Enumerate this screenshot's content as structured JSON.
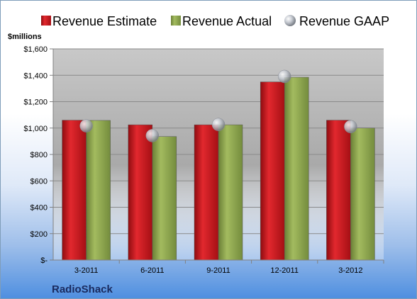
{
  "chart_data": {
    "type": "bar",
    "company": "RadioShack",
    "ylabel": "$millions",
    "ylim": [
      0,
      1600
    ],
    "ystep": 200,
    "grid": true,
    "legend_position": "top",
    "y_tick_labels": [
      "$-",
      "$200",
      "$400",
      "$600",
      "$800",
      "$1,000",
      "$1,200",
      "$1,400",
      "$1,600"
    ],
    "categories": [
      "3-2011",
      "6-2011",
      "9-2011",
      "12-2011",
      "3-2012"
    ],
    "series": [
      {
        "name": "Revenue Estimate",
        "type": "bar",
        "color": "#c8161d",
        "values": [
          1060,
          1025,
          1025,
          1350,
          1060
        ]
      },
      {
        "name": "Revenue Actual",
        "type": "bar",
        "color": "#8fa84d",
        "values": [
          1058,
          936,
          1025,
          1385,
          1000
        ]
      },
      {
        "name": "Revenue GAAP",
        "type": "marker",
        "color": "#b8bcc4",
        "values": [
          1017,
          943,
          1027,
          1391,
          1011
        ]
      }
    ]
  }
}
